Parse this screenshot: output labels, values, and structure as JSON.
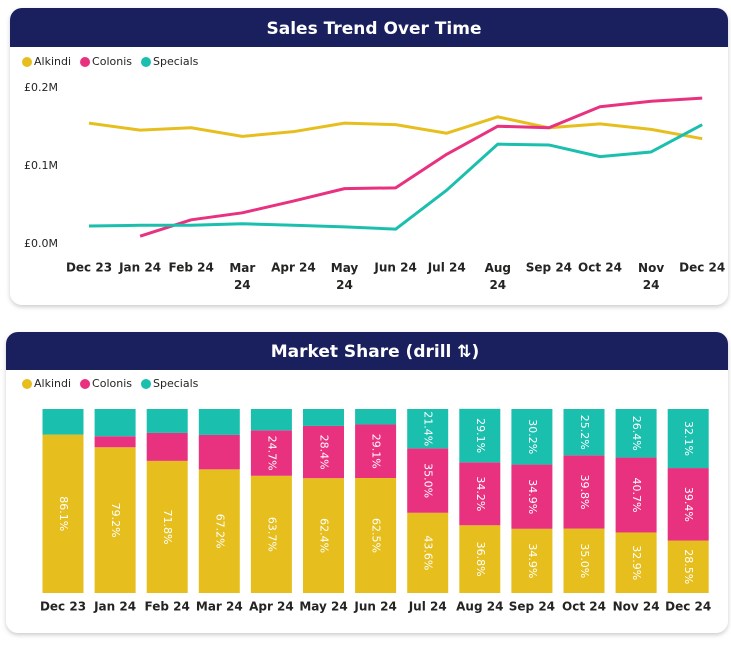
{
  "chart_data": [
    {
      "type": "line",
      "title": "Sales Trend Over Time",
      "categories": [
        "Dec 23",
        "Jan 24",
        "Feb 24",
        "Mar 24",
        "Apr 24",
        "May 24",
        "Jun 24",
        "Jul 24",
        "Aug 24",
        "Sep 24",
        "Oct 24",
        "Nov 24",
        "Dec 24"
      ],
      "series": [
        {
          "name": "Alkindi",
          "color": "#e6bf1f",
          "values": [
            0.155,
            0.146,
            0.149,
            0.138,
            0.144,
            0.155,
            0.153,
            0.142,
            0.163,
            0.149,
            0.154,
            0.147,
            0.135
          ]
        },
        {
          "name": "Colonis",
          "color": "#e8317f",
          "values": [
            null,
            0.01,
            0.031,
            0.04,
            0.055,
            0.071,
            0.072,
            0.115,
            0.151,
            0.149,
            0.176,
            0.183,
            0.187
          ]
        },
        {
          "name": "Specials",
          "color": "#1abfae",
          "values": [
            0.023,
            0.024,
            0.024,
            0.026,
            0.024,
            0.022,
            0.019,
            0.069,
            0.128,
            0.127,
            0.112,
            0.118,
            0.153
          ]
        }
      ],
      "ylim": [
        0,
        0.2
      ],
      "yticks": [
        {
          "value": 0,
          "label": "£0.0M"
        },
        {
          "value": 0.1,
          "label": "£0.1M"
        },
        {
          "value": 0.2,
          "label": "£0.2M"
        }
      ],
      "legend": "top-left"
    },
    {
      "type": "stacked-bar",
      "title": "Market Share (drill ⇅)",
      "categories": [
        "Dec 23",
        "Jan 24",
        "Feb 24",
        "Mar 24",
        "Apr 24",
        "May 24",
        "Jun 24",
        "Jul 24",
        "Aug 24",
        "Sep 24",
        "Oct 24",
        "Nov 24",
        "Dec 24"
      ],
      "series": [
        {
          "name": "Alkindi",
          "color": "#e6bf1f",
          "values": [
            86.1,
            79.2,
            71.8,
            67.2,
            63.7,
            62.4,
            62.5,
            43.6,
            36.8,
            34.9,
            35.0,
            32.9,
            28.5
          ],
          "value_labels": [
            "86.1%",
            "79.2%",
            "71.8%",
            "67.2%",
            "63.7%",
            "62.4%",
            "62.5%",
            "43.6%",
            "36.8%",
            "34.9%",
            "35.0%",
            "32.9%",
            "28.5%"
          ]
        },
        {
          "name": "Colonis",
          "color": "#e8317f",
          "values": [
            null,
            6.0,
            15.2,
            18.7,
            24.7,
            28.4,
            29.1,
            35.0,
            34.2,
            34.9,
            39.8,
            40.7,
            39.4
          ],
          "value_labels": [
            null,
            null,
            null,
            null,
            "24.7%",
            "28.4%",
            "29.1%",
            "35.0%",
            "34.2%",
            "34.9%",
            "39.8%",
            "40.7%",
            "39.4%"
          ]
        },
        {
          "name": "Specials",
          "color": "#1abfae",
          "values": [
            13.9,
            14.8,
            13.0,
            14.1,
            11.6,
            9.2,
            8.4,
            21.4,
            29.1,
            30.2,
            25.2,
            26.4,
            32.1
          ],
          "value_labels": [
            null,
            null,
            null,
            null,
            null,
            null,
            null,
            "21.4%",
            "29.1%",
            "30.2%",
            "25.2%",
            "26.4%",
            "32.1%"
          ]
        }
      ],
      "ylim": [
        0,
        100
      ],
      "legend": "top-left"
    }
  ]
}
